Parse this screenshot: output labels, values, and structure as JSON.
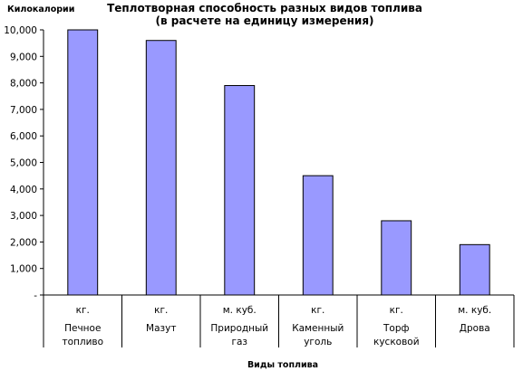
{
  "chart_data": {
    "type": "bar",
    "title_line1": "Теплотворная способность  разных видов топлива",
    "title_line2": "(в расчете на единицу измерения)",
    "ylabel": "Килокалории",
    "xlabel": "Виды топлива",
    "ylim": [
      0,
      10000
    ],
    "yticks": [
      {
        "value": 10000,
        "label": "10,000"
      },
      {
        "value": 9000,
        "label": "9,000"
      },
      {
        "value": 8000,
        "label": "8,000"
      },
      {
        "value": 7000,
        "label": "7,000"
      },
      {
        "value": 6000,
        "label": "6,000"
      },
      {
        "value": 5000,
        "label": "5,000"
      },
      {
        "value": 4000,
        "label": "4,000"
      },
      {
        "value": 3000,
        "label": "3,000"
      },
      {
        "value": 2000,
        "label": "2,000"
      },
      {
        "value": 1000,
        "label": "1,000"
      },
      {
        "value": 0,
        "label": "-"
      }
    ],
    "categories": [
      {
        "unit": "кг.",
        "name_lines": [
          "Печное",
          "топливо"
        ]
      },
      {
        "unit": "кг.",
        "name_lines": [
          "Мазут"
        ]
      },
      {
        "unit": "м. куб.",
        "name_lines": [
          "Природный",
          "газ"
        ]
      },
      {
        "unit": "кг.",
        "name_lines": [
          "Каменный",
          "уголь"
        ]
      },
      {
        "unit": "кг.",
        "name_lines": [
          "Торф",
          "кусковой"
        ]
      },
      {
        "unit": "м. куб.",
        "name_lines": [
          "Дрова"
        ]
      }
    ],
    "values": [
      10000,
      9600,
      7900,
      4500,
      2800,
      1900
    ],
    "grid": false,
    "bar_color": "#9999ff",
    "bar_stroke": "#000000"
  }
}
